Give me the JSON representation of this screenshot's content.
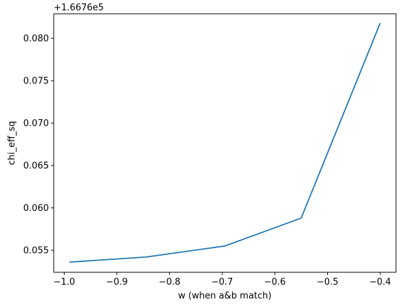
{
  "chart_data": {
    "type": "line",
    "title": "",
    "xlabel": "w (when a&b match)",
    "ylabel": "chi_eff_sq",
    "offset_label": "+1.6676e5",
    "y_offset": 166760,
    "xlim": [
      -1.02,
      -0.37
    ],
    "ylim": [
      0.0524,
      0.0829
    ],
    "x_ticks": [
      -1.0,
      -0.9,
      -0.8,
      -0.7,
      -0.6,
      -0.5,
      -0.4
    ],
    "x_tick_labels": [
      "−1.0",
      "−0.9",
      "−0.8",
      "−0.7",
      "−0.6",
      "−0.5",
      "−0.4"
    ],
    "y_ticks": [
      0.055,
      0.06,
      0.065,
      0.07,
      0.075,
      0.08
    ],
    "y_tick_labels": [
      "0.055",
      "0.060",
      "0.065",
      "0.070",
      "0.075",
      "0.080"
    ],
    "grid": false,
    "legend": "none",
    "series": [
      {
        "color": "#1f77b4",
        "x": [
          -0.99,
          -0.845,
          -0.695,
          -0.55,
          -0.4
        ],
        "y": [
          0.0536,
          0.0542,
          0.0555,
          0.0588,
          0.0818
        ]
      }
    ]
  }
}
